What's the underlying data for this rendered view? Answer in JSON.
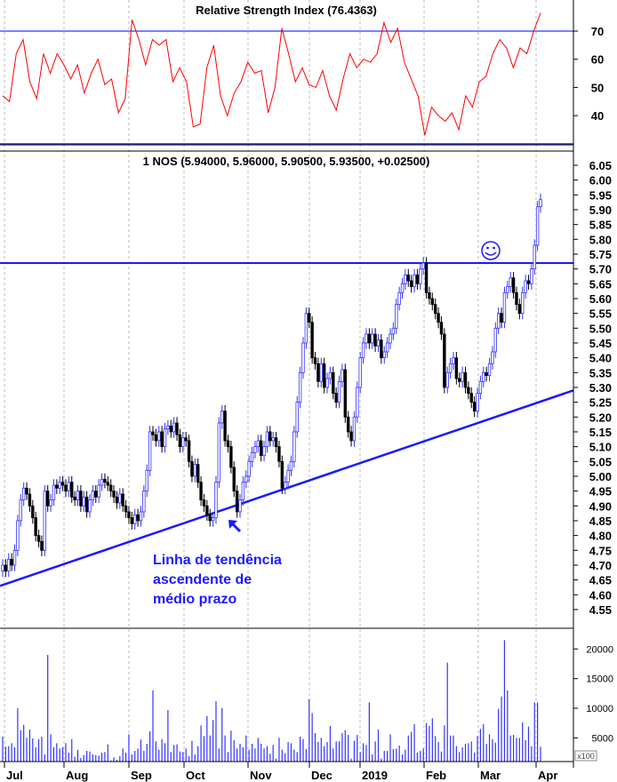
{
  "chart_data": [
    {
      "type": "line",
      "title": "Relative Strength Index (76.4363)",
      "ylim": [
        30,
        81
      ],
      "yticks": [
        "70",
        "60",
        "50",
        "40"
      ],
      "ytick_values": [
        70,
        60,
        50,
        40
      ],
      "reference_lines": [
        70,
        30
      ],
      "series_color": "#ff0000",
      "reference_color": "#3333ff",
      "values": [
        47,
        45,
        62,
        67,
        52,
        46,
        62,
        55,
        62,
        58,
        53,
        58,
        48,
        55,
        60,
        51,
        53,
        41,
        46,
        74,
        67,
        58,
        67,
        65,
        67,
        52,
        57,
        52,
        36,
        37,
        57,
        65,
        47,
        40,
        48,
        52,
        59,
        55,
        56,
        41,
        50,
        71,
        62,
        52,
        57,
        51,
        50,
        56,
        47,
        42,
        53,
        62,
        57,
        60,
        59,
        62,
        73,
        66,
        71,
        59,
        53,
        47,
        33,
        43,
        40,
        38,
        41,
        35,
        47,
        43,
        52,
        54,
        62,
        67,
        64,
        57,
        64,
        62,
        70,
        76.4363
      ]
    },
    {
      "type": "candlestick",
      "title": "1 NOS (5.94000, 5.96000, 5.90500, 5.93500, +0.02500)",
      "ylim": [
        4.5,
        6.08
      ],
      "yticks": [
        "6.05",
        "6.00",
        "5.95",
        "5.90",
        "5.85",
        "5.80",
        "5.75",
        "5.70",
        "5.65",
        "5.60",
        "5.55",
        "5.50",
        "5.45",
        "5.40",
        "5.35",
        "5.30",
        "5.25",
        "5.20",
        "5.15",
        "5.10",
        "5.05",
        "5.00",
        "4.95",
        "4.90",
        "4.85",
        "4.80",
        "4.75",
        "4.70",
        "4.65",
        "4.60",
        "4.55"
      ],
      "up_color": "#3333ff",
      "down_color": "#000000",
      "closes": [
        4.7,
        4.68,
        4.72,
        4.7,
        4.75,
        4.85,
        4.92,
        4.96,
        4.94,
        4.9,
        4.86,
        4.8,
        4.78,
        4.75,
        4.95,
        4.9,
        4.92,
        4.97,
        4.96,
        4.98,
        4.97,
        4.95,
        4.98,
        4.93,
        4.92,
        4.95,
        4.9,
        4.93,
        4.88,
        4.92,
        4.95,
        4.93,
        4.97,
        4.99,
        4.98,
        4.97,
        4.95,
        4.93,
        4.91,
        4.94,
        4.9,
        4.88,
        4.86,
        4.84,
        4.87,
        4.85,
        4.88,
        4.95,
        5.02,
        5.15,
        5.14,
        5.12,
        5.15,
        5.1,
        5.16,
        5.17,
        5.15,
        5.18,
        5.14,
        5.1,
        5.13,
        5.12,
        5.05,
        5.0,
        5.04,
        4.98,
        4.92,
        4.9,
        4.87,
        4.85,
        4.86,
        4.98,
        5.18,
        5.22,
        5.12,
        5.1,
        5.03,
        4.95,
        4.88,
        4.92,
        4.98,
        5.0,
        5.05,
        5.08,
        5.1,
        5.12,
        5.07,
        5.1,
        5.15,
        5.12,
        5.13,
        5.1,
        5.05,
        4.96,
        4.98,
        5.02,
        5.05,
        5.15,
        5.25,
        5.35,
        5.45,
        5.55,
        5.52,
        5.4,
        5.38,
        5.32,
        5.38,
        5.3,
        5.33,
        5.35,
        5.28,
        5.25,
        5.32,
        5.36,
        5.2,
        5.15,
        5.12,
        5.2,
        5.3,
        5.4,
        5.45,
        5.48,
        5.45,
        5.48,
        5.44,
        5.46,
        5.4,
        5.42,
        5.45,
        5.48,
        5.5,
        5.58,
        5.62,
        5.65,
        5.68,
        5.66,
        5.64,
        5.68,
        5.65,
        5.7,
        5.72,
        5.62,
        5.6,
        5.58,
        5.55,
        5.52,
        5.48,
        5.3,
        5.35,
        5.38,
        5.4,
        5.33,
        5.32,
        5.35,
        5.3,
        5.28,
        5.25,
        5.22,
        5.28,
        5.32,
        5.35,
        5.34,
        5.38,
        5.42,
        5.5,
        5.55,
        5.52,
        5.62,
        5.64,
        5.67,
        5.62,
        5.58,
        5.55,
        5.62,
        5.66,
        5.65,
        5.7,
        5.78,
        5.91,
        5.935
      ],
      "resistance_line": 5.72,
      "trendline": {
        "start": 4.63,
        "end": 5.29
      },
      "line_color": "#1a1aff",
      "annotations": {
        "trend_label": [
          "Linha de tendência",
          "ascendente de",
          "médio prazo"
        ],
        "arrow_icon": "arrow-up-left",
        "smiley_icon": "smiley-face"
      }
    },
    {
      "type": "bar",
      "ylim": [
        1000,
        23500
      ],
      "yticks": [
        "20000",
        "15000",
        "10000",
        "5000"
      ],
      "ytick_values": [
        20000,
        15000,
        10000,
        5000
      ],
      "unit_label": "x100",
      "bar_color": "#3333ff",
      "values": [
        5200,
        3500,
        3600,
        4100,
        3400,
        10000,
        6300,
        7200,
        5000,
        6400,
        4900,
        3400,
        4800,
        5200,
        2200,
        19000,
        5600,
        3400,
        4100,
        3200,
        3400,
        4100,
        2500,
        4800,
        1800,
        3000,
        1600,
        2100,
        2800,
        2700,
        2200,
        2100,
        2000,
        2500,
        2600,
        3900,
        1200,
        1700,
        1300,
        1900,
        3200,
        2500,
        5600,
        2200,
        2800,
        3200,
        4700,
        2800,
        4000,
        6100,
        13000,
        4400,
        3000,
        4800,
        4100,
        9700,
        2600,
        3800,
        3900,
        2700,
        2600,
        3200,
        1900,
        4500,
        2200,
        3600,
        7100,
        5300,
        8700,
        5400,
        8000,
        11200,
        3200,
        10000,
        5400,
        2600,
        6200,
        4600,
        3200,
        4000,
        3400,
        5400,
        3000,
        4000,
        3200,
        5000,
        4000,
        3200,
        3600,
        2300,
        3800,
        1500,
        5000,
        3000,
        2400,
        4300,
        4100,
        3000,
        2600,
        5200,
        4800,
        3100,
        11500,
        9200,
        5800,
        4300,
        5000,
        3600,
        4300,
        7000,
        3200,
        4400,
        4400,
        5800,
        6300,
        5500,
        1500,
        4500,
        5500,
        2600,
        4100,
        3800,
        11000,
        2200,
        4400,
        6400,
        1500,
        2800,
        2800,
        5600,
        3100,
        3200,
        3700,
        2200,
        3000,
        5400,
        6000,
        7300,
        2500,
        2800,
        3200,
        7500,
        7000,
        8300,
        5300,
        4300,
        2700,
        7100,
        17700,
        5400,
        5400,
        3600,
        2600,
        3400,
        4000,
        4100,
        4400,
        2500,
        5300,
        6500,
        7300,
        4000,
        5600,
        4800,
        4200,
        9900,
        12000,
        21500,
        13000,
        5400,
        5500,
        5000,
        5000,
        7600,
        4600,
        6900,
        3600,
        11000,
        11000,
        3500
      ]
    }
  ],
  "x_axis": {
    "labels": [
      "Jul",
      "Aug",
      "Sep",
      "Oct",
      "Nov",
      "Dec",
      "2019",
      "Feb",
      "Mar",
      "Apr"
    ]
  }
}
